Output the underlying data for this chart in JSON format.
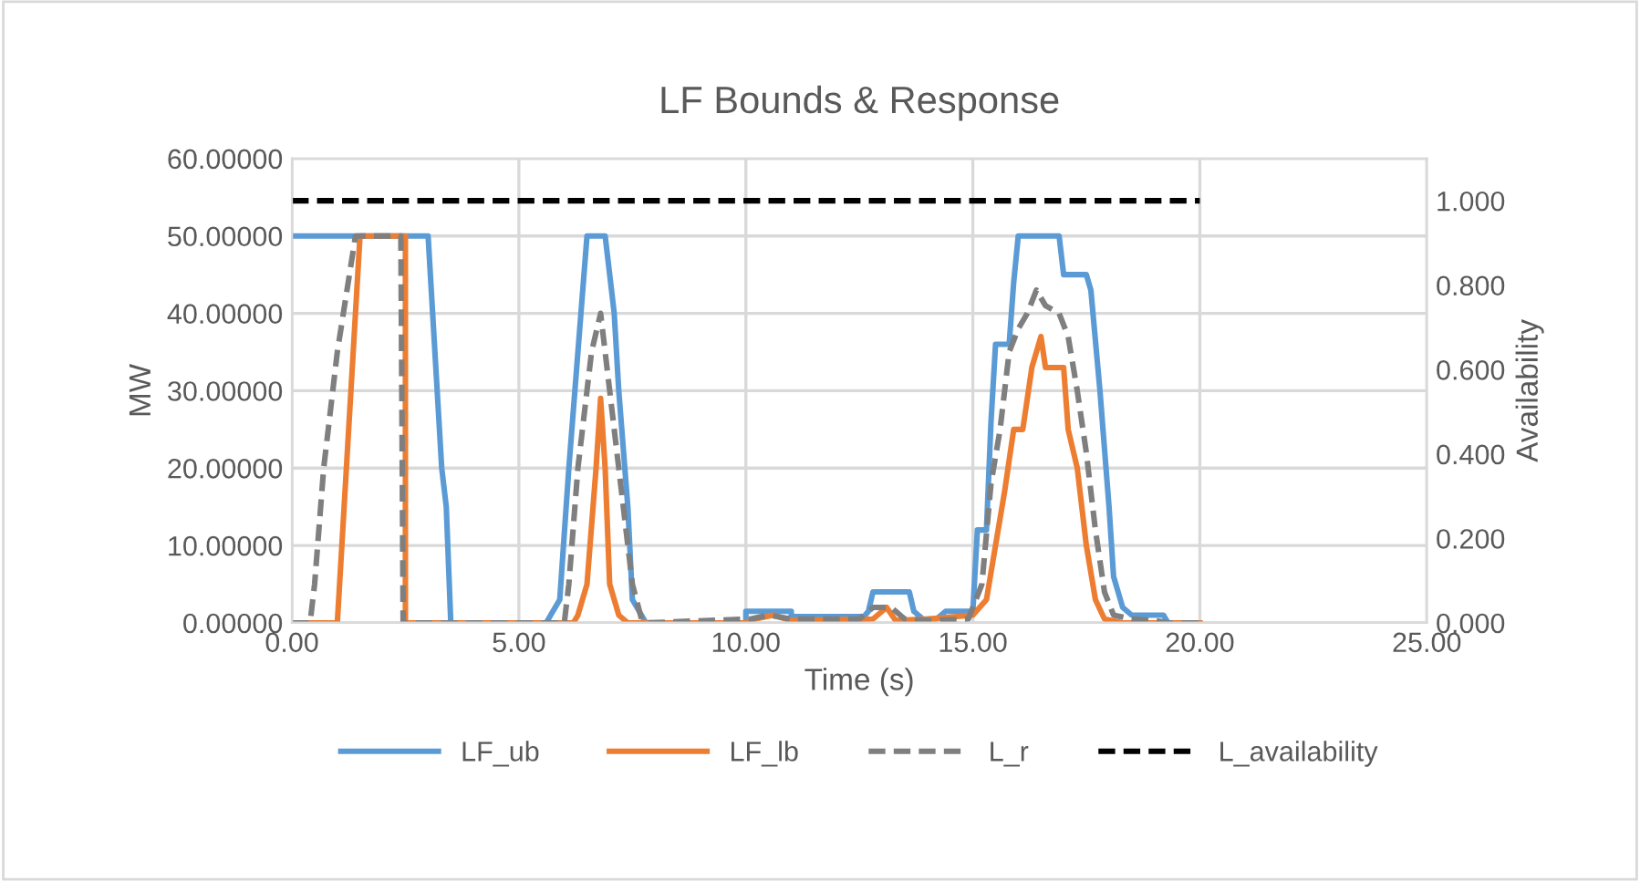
{
  "chart_data": {
    "type": "line",
    "title": "LF Bounds & Response",
    "xlabel": "Time (s)",
    "ylabel": "MW",
    "y2label": "Availability",
    "xlim": [
      0,
      25
    ],
    "xticks": [
      {
        "value": 0,
        "label": "0.00"
      },
      {
        "value": 5,
        "label": "5.00"
      },
      {
        "value": 10,
        "label": "10.00"
      },
      {
        "value": 15,
        "label": "15.00"
      },
      {
        "value": 20,
        "label": "20.00"
      },
      {
        "value": 25,
        "label": "25.00"
      }
    ],
    "ylim": [
      0,
      60
    ],
    "yticks": [
      {
        "value": 0,
        "label": "0.00000"
      },
      {
        "value": 10,
        "label": "10.00000"
      },
      {
        "value": 20,
        "label": "20.00000"
      },
      {
        "value": 30,
        "label": "30.00000"
      },
      {
        "value": 40,
        "label": "40.00000"
      },
      {
        "value": 50,
        "label": "50.00000"
      },
      {
        "value": 60,
        "label": "60.00000"
      }
    ],
    "y2lim": [
      0,
      1.1
    ],
    "y2ticks": [
      {
        "value": 0,
        "label": "0.000"
      },
      {
        "value": 0.2,
        "label": "0.200"
      },
      {
        "value": 0.4,
        "label": "0.400"
      },
      {
        "value": 0.6,
        "label": "0.600"
      },
      {
        "value": 0.8,
        "label": "0.800"
      },
      {
        "value": 1.0,
        "label": "1.000"
      }
    ],
    "grid": true,
    "legend": "bottom",
    "marker": "none",
    "series": [
      {
        "name": "LF_ub",
        "color": "#5b9bd5",
        "line_style": "solid",
        "x": [
          0,
          3.0,
          3.1,
          3.3,
          3.4,
          3.5,
          5.6,
          5.7,
          5.9,
          6.1,
          6.3,
          6.5,
          6.9,
          7.1,
          7.2,
          7.4,
          7.5,
          7.8,
          10.0,
          10.0,
          11.0,
          11.0,
          12.6,
          12.7,
          12.8,
          13.6,
          13.7,
          13.9,
          14.2,
          14.4,
          15.0,
          15.1,
          15.3,
          15.4,
          15.5,
          15.8,
          15.9,
          16.0,
          16.9,
          17.0,
          17.5,
          17.6,
          17.8,
          18.0,
          18.1,
          18.3,
          18.5,
          19.2,
          19.3,
          20.0
        ],
        "values": [
          50,
          50,
          40,
          20,
          15,
          0,
          0,
          1,
          3,
          20,
          35,
          50,
          50,
          40,
          30,
          15,
          3,
          0,
          0,
          1.5,
          1.5,
          0.8,
          0.8,
          1.5,
          4,
          4,
          1.5,
          0.5,
          0.5,
          1.5,
          1.5,
          12,
          12,
          26,
          36,
          36,
          44,
          50,
          50,
          45,
          45,
          43,
          30,
          15,
          6,
          2,
          1,
          1,
          0,
          0
        ]
      },
      {
        "name": "LF_lb",
        "color": "#ed7d31",
        "line_style": "solid",
        "x": [
          0,
          1.0,
          1.1,
          1.3,
          1.5,
          2.5,
          2.5,
          6.2,
          6.3,
          6.5,
          6.7,
          6.8,
          6.9,
          7.0,
          7.2,
          7.4,
          10.0,
          10.2,
          10.6,
          11.0,
          12.8,
          13.1,
          13.3,
          14.0,
          15.0,
          15.3,
          15.5,
          15.7,
          15.9,
          16.1,
          16.3,
          16.5,
          16.6,
          17.0,
          17.1,
          17.3,
          17.5,
          17.7,
          17.9,
          18.3,
          20.0
        ],
        "values": [
          0,
          0,
          10,
          30,
          50,
          50,
          0,
          0,
          1,
          5,
          20,
          29,
          20,
          5,
          1,
          0,
          0,
          0.5,
          1,
          0.3,
          0.5,
          2,
          0.3,
          0.5,
          1,
          3,
          10,
          17,
          25,
          25,
          33,
          37,
          33,
          33,
          25,
          20,
          10,
          3,
          0.5,
          0,
          0
        ]
      },
      {
        "name": "L_r",
        "color": "#7f7f7f",
        "line_style": "dashed",
        "x": [
          0,
          0.4,
          0.5,
          0.7,
          1.0,
          1.4,
          2.4,
          2.45,
          6.0,
          6.1,
          6.3,
          6.6,
          6.8,
          7.0,
          7.2,
          7.5,
          7.7,
          7.8,
          10.1,
          10.5,
          11.0,
          12.5,
          12.8,
          13.2,
          13.5,
          14.0,
          14.9,
          15.2,
          15.4,
          15.6,
          15.8,
          16.0,
          16.2,
          16.4,
          16.6,
          16.9,
          17.1,
          17.3,
          17.5,
          17.7,
          17.9,
          18.1,
          18.5,
          19.0,
          19.3,
          20.0
        ],
        "values": [
          0,
          0,
          5,
          20,
          35,
          50,
          50,
          0,
          0,
          5,
          20,
          35,
          40,
          30,
          20,
          5,
          0.5,
          0,
          0.5,
          1,
          0.5,
          0.5,
          2,
          2,
          0.5,
          0.3,
          0.5,
          5,
          18,
          25,
          35,
          38,
          40,
          43,
          41,
          40,
          37,
          30,
          22,
          12,
          4,
          1,
          0.5,
          0.3,
          0,
          0
        ]
      },
      {
        "name": "L_availability",
        "color": "#000000",
        "line_style": "dashed",
        "axis": "y2",
        "x": [
          0,
          20.0
        ],
        "values": [
          1.0,
          1.0
        ]
      }
    ]
  }
}
